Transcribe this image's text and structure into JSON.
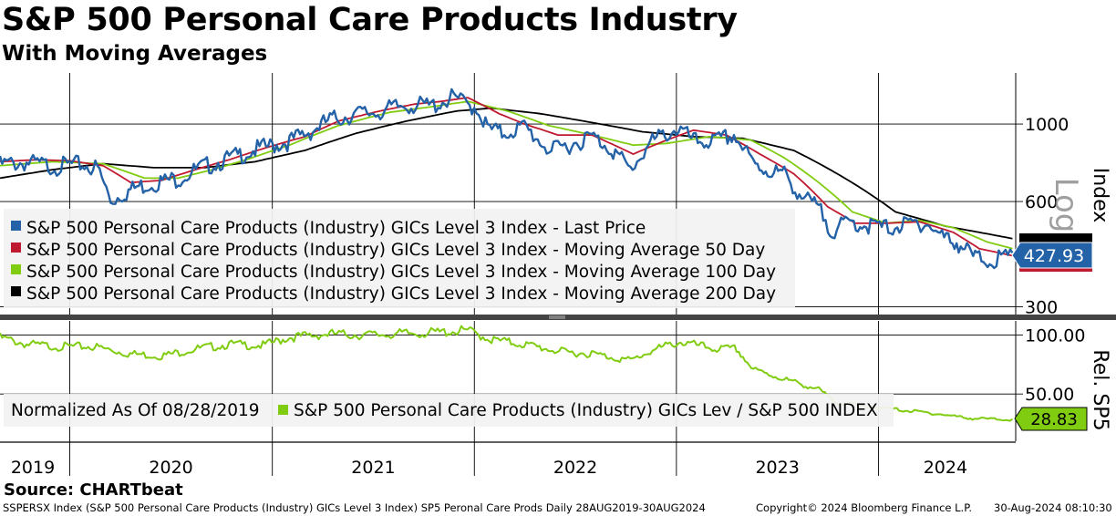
{
  "title": "S&P 500 Personal Care Products Industry",
  "subtitle": "With Moving Averages",
  "source": "Source: CHARTbeat",
  "footer": {
    "left": "SSPERSX Index (S&P 500 Personal Care Products (Industry) GICs Level 3 Index) SP5 Peronal Care Prods  Daily 28AUG2019-30AUG2024",
    "copyright": "Copyright© 2024 Bloomberg Finance L.P.",
    "timestamp": "30-Aug-2024 08:10:30"
  },
  "colors": {
    "last_price": "#2462a8",
    "ma50": "#c01a30",
    "ma100": "#80cc10",
    "ma200": "#000000",
    "relative": "#80cc10"
  },
  "chart_data": [
    {
      "type": "line",
      "panel": "upper",
      "ylabel": "Index",
      "yscale": "log",
      "scale_label": "Log",
      "yticks": [
        300,
        600,
        1000
      ],
      "ylim": [
        285,
        1400
      ],
      "x_years": [
        "2019",
        "2020",
        "2021",
        "2022",
        "2023",
        "2024"
      ],
      "x_range": [
        "2019-08-28",
        "2024-08-30"
      ],
      "last_value_label": "427.93",
      "series": [
        {
          "name": "S&P 500 Personal Care Products (Industry) GICs Level 3 Index - Last Price",
          "color": "#2462a8",
          "points": [
            [
              "2019-08-28",
              790
            ],
            [
              "2019-10-15",
              800
            ],
            [
              "2019-12-01",
              780
            ],
            [
              "2020-01-20",
              790
            ],
            [
              "2020-02-20",
              770
            ],
            [
              "2020-03-15",
              620
            ],
            [
              "2020-04-05",
              650
            ],
            [
              "2020-05-01",
              680
            ],
            [
              "2020-06-01",
              700
            ],
            [
              "2020-07-15",
              720
            ],
            [
              "2020-09-01",
              780
            ],
            [
              "2020-10-15",
              820
            ],
            [
              "2020-12-01",
              870
            ],
            [
              "2021-02-01",
              920
            ],
            [
              "2021-03-15",
              990
            ],
            [
              "2021-04-15",
              1060
            ],
            [
              "2021-06-01",
              1100
            ],
            [
              "2021-07-15",
              1120
            ],
            [
              "2021-09-01",
              1170
            ],
            [
              "2021-10-15",
              1160
            ],
            [
              "2021-11-25",
              1230
            ],
            [
              "2021-12-15",
              1180
            ],
            [
              "2022-01-05",
              1150
            ],
            [
              "2022-01-25",
              1000
            ],
            [
              "2022-02-20",
              970
            ],
            [
              "2022-04-01",
              1010
            ],
            [
              "2022-05-20",
              860
            ],
            [
              "2022-06-30",
              910
            ],
            [
              "2022-08-01",
              950
            ],
            [
              "2022-09-05",
              880
            ],
            [
              "2022-10-10",
              760
            ],
            [
              "2022-11-15",
              910
            ],
            [
              "2022-12-15",
              970
            ],
            [
              "2023-01-05",
              1000
            ],
            [
              "2023-02-01",
              920
            ],
            [
              "2023-03-15",
              920
            ],
            [
              "2023-04-15",
              960
            ],
            [
              "2023-05-20",
              790
            ],
            [
              "2023-06-15",
              760
            ],
            [
              "2023-07-15",
              740
            ],
            [
              "2023-08-15",
              640
            ],
            [
              "2023-09-15",
              590
            ],
            [
              "2023-10-10",
              510
            ],
            [
              "2023-11-10",
              540
            ],
            [
              "2023-12-10",
              530
            ],
            [
              "2024-01-15",
              520
            ],
            [
              "2024-02-20",
              530
            ],
            [
              "2024-03-25",
              540
            ],
            [
              "2024-04-25",
              490
            ],
            [
              "2024-05-25",
              470
            ],
            [
              "2024-06-20",
              430
            ],
            [
              "2024-07-20",
              420
            ],
            [
              "2024-08-30",
              428
            ]
          ]
        },
        {
          "name": "S&P 500 Personal Care Products (Industry) GICs Level 3 Index - Moving Average 50 Day",
          "color": "#c01a30",
          "points": [
            [
              "2019-08-28",
              780
            ],
            [
              "2019-11-01",
              790
            ],
            [
              "2020-01-01",
              785
            ],
            [
              "2020-03-01",
              760
            ],
            [
              "2020-04-20",
              680
            ],
            [
              "2020-06-15",
              690
            ],
            [
              "2020-08-15",
              740
            ],
            [
              "2020-10-15",
              790
            ],
            [
              "2020-12-15",
              850
            ],
            [
              "2021-03-01",
              920
            ],
            [
              "2021-05-01",
              1020
            ],
            [
              "2021-07-15",
              1090
            ],
            [
              "2021-09-15",
              1140
            ],
            [
              "2021-11-01",
              1160
            ],
            [
              "2021-12-20",
              1190
            ],
            [
              "2022-02-15",
              1070
            ],
            [
              "2022-04-01",
              1000
            ],
            [
              "2022-06-01",
              930
            ],
            [
              "2022-08-01",
              930
            ],
            [
              "2022-10-15",
              820
            ],
            [
              "2022-12-15",
              900
            ],
            [
              "2023-02-01",
              960
            ],
            [
              "2023-04-01",
              930
            ],
            [
              "2023-06-01",
              820
            ],
            [
              "2023-08-01",
              720
            ],
            [
              "2023-10-01",
              580
            ],
            [
              "2023-11-20",
              520
            ],
            [
              "2024-01-15",
              520
            ],
            [
              "2024-03-15",
              525
            ],
            [
              "2024-05-15",
              490
            ],
            [
              "2024-07-01",
              440
            ],
            [
              "2024-08-30",
              420
            ]
          ]
        },
        {
          "name": "S&P 500 Personal Care Products (Industry) GICs Level 3 Index - Moving Average 100 Day",
          "color": "#80cc10",
          "points": [
            [
              "2019-08-28",
              760
            ],
            [
              "2019-12-01",
              780
            ],
            [
              "2020-03-01",
              770
            ],
            [
              "2020-05-15",
              700
            ],
            [
              "2020-07-15",
              700
            ],
            [
              "2020-09-15",
              740
            ],
            [
              "2020-11-15",
              790
            ],
            [
              "2021-02-01",
              870
            ],
            [
              "2021-05-01",
              990
            ],
            [
              "2021-08-01",
              1080
            ],
            [
              "2021-10-15",
              1120
            ],
            [
              "2021-12-20",
              1160
            ],
            [
              "2022-03-01",
              1090
            ],
            [
              "2022-05-15",
              990
            ],
            [
              "2022-08-01",
              930
            ],
            [
              "2022-10-15",
              870
            ],
            [
              "2022-12-15",
              880
            ],
            [
              "2023-03-01",
              920
            ],
            [
              "2023-05-15",
              900
            ],
            [
              "2023-07-15",
              800
            ],
            [
              "2023-09-15",
              680
            ],
            [
              "2023-11-15",
              560
            ],
            [
              "2024-01-15",
              520
            ],
            [
              "2024-03-15",
              530
            ],
            [
              "2024-05-15",
              505
            ],
            [
              "2024-07-15",
              460
            ],
            [
              "2024-08-30",
              440
            ]
          ]
        },
        {
          "name": "S&P 500 Personal Care Products (Industry) GICs Level 3 Index - Moving Average 200 Day",
          "color": "#000000",
          "points": [
            [
              "2019-08-28",
              700
            ],
            [
              "2019-12-01",
              740
            ],
            [
              "2020-03-01",
              770
            ],
            [
              "2020-06-01",
              750
            ],
            [
              "2020-09-01",
              750
            ],
            [
              "2020-12-01",
              780
            ],
            [
              "2021-03-01",
              840
            ],
            [
              "2021-06-01",
              940
            ],
            [
              "2021-09-01",
              1020
            ],
            [
              "2021-12-01",
              1090
            ],
            [
              "2022-02-01",
              1110
            ],
            [
              "2022-05-01",
              1070
            ],
            [
              "2022-08-01",
              1010
            ],
            [
              "2022-11-01",
              950
            ],
            [
              "2023-02-01",
              920
            ],
            [
              "2023-05-01",
              910
            ],
            [
              "2023-08-01",
              840
            ],
            [
              "2023-11-01",
              700
            ],
            [
              "2024-02-01",
              560
            ],
            [
              "2024-05-01",
              510
            ],
            [
              "2024-08-30",
              470
            ]
          ]
        }
      ]
    },
    {
      "type": "line",
      "panel": "lower",
      "ylabel": "Rel. SP5",
      "yticks": [
        50,
        100
      ],
      "ytick_labels": [
        "50.00",
        "100.00"
      ],
      "ylim": [
        10,
        112
      ],
      "normalization_note": "Normalized As Of 08/28/2019",
      "last_value_label": "28.83",
      "series": [
        {
          "name": "S&P 500 Personal Care Products (Industry) GICs Lev / S&P 500 INDEX",
          "color": "#80cc10",
          "points": [
            [
              "2019-08-28",
              100
            ],
            [
              "2019-10-15",
              94
            ],
            [
              "2019-12-15",
              92
            ],
            [
              "2020-02-15",
              92
            ],
            [
              "2020-04-15",
              86
            ],
            [
              "2020-06-15",
              84
            ],
            [
              "2020-08-15",
              90
            ],
            [
              "2020-10-15",
              94
            ],
            [
              "2020-12-15",
              93
            ],
            [
              "2021-02-01",
              100
            ],
            [
              "2021-04-15",
              103
            ],
            [
              "2021-06-15",
              102
            ],
            [
              "2021-08-15",
              103
            ],
            [
              "2021-10-15",
              104
            ],
            [
              "2021-12-20",
              106
            ],
            [
              "2022-02-01",
              98
            ],
            [
              "2022-04-01",
              94
            ],
            [
              "2022-06-15",
              87
            ],
            [
              "2022-08-01",
              86
            ],
            [
              "2022-10-10",
              80
            ],
            [
              "2022-11-15",
              88
            ],
            [
              "2023-01-05",
              96
            ],
            [
              "2023-03-15",
              90
            ],
            [
              "2023-04-20",
              90
            ],
            [
              "2023-05-20",
              72
            ],
            [
              "2023-07-15",
              64
            ],
            [
              "2023-09-15",
              55
            ],
            [
              "2023-10-15",
              44
            ],
            [
              "2023-12-15",
              40
            ],
            [
              "2024-02-15",
              37
            ],
            [
              "2024-04-15",
              34
            ],
            [
              "2024-06-15",
              30
            ],
            [
              "2024-08-30",
              28.83
            ]
          ]
        }
      ]
    }
  ]
}
